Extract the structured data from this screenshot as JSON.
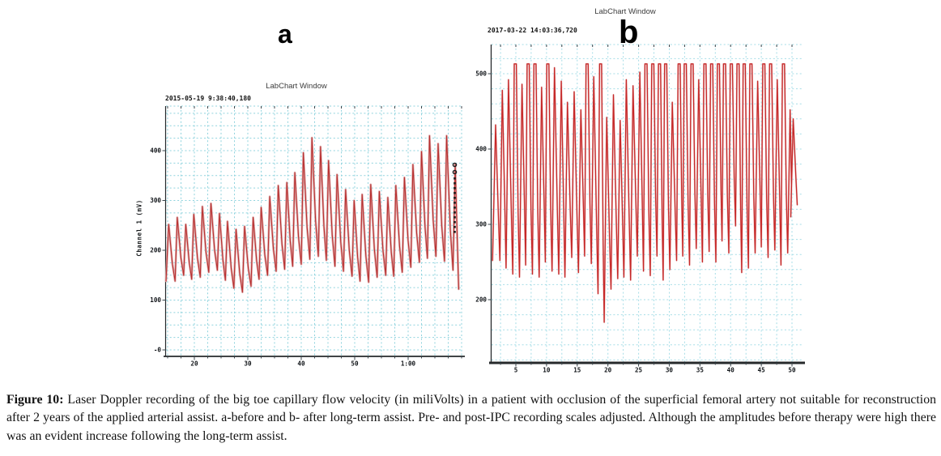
{
  "caption": {
    "label": "Figure 10:",
    "text": " Laser Doppler recording of the big toe capillary flow velocity (in miliVolts) in a patient with occlusion of the superficial femoral artery not suitable for reconstruction after 2 years of the applied arterial assist. a-before and b- after long-term assist. Pre- and post-IPC recording scales adjusted. Although the amplitudes before therapy were high there was an evident increase following the long-term assist."
  },
  "chart_data": [
    {
      "type": "line",
      "panel": "a",
      "annotation_label": "a",
      "title": "LabChart Window",
      "timestamp": "2015-05-19 9:38:40,180",
      "ylabel": "Channel 1 (mV)",
      "xlabel": "",
      "unit": "mV",
      "x_axis": {
        "tick_labels": [
          "20",
          "30",
          "40",
          "50",
          "1:00"
        ],
        "tick_values": [
          20,
          30,
          40,
          50,
          60
        ],
        "range_s": [
          14.7,
          70
        ]
      },
      "y_axis": {
        "tick_labels": [
          "400",
          "300",
          "200",
          "100",
          "-0"
        ],
        "tick_values": [
          400,
          300,
          200,
          100,
          0
        ],
        "range_mv": [
          -13,
          489
        ]
      },
      "grid": {
        "on": true,
        "style": "dashed",
        "t_step": 2.5,
        "v_step": 25,
        "color": "#8fd3de"
      },
      "line_color": "#b83030",
      "halo_color": "#dca6a6",
      "clip_level": null,
      "edge_marker": "dotted-vertical-marker",
      "pulses_t_peak_trough": [
        [
          15.2,
          252,
          138
        ],
        [
          16.8,
          266,
          150
        ],
        [
          18.4,
          252,
          142
        ],
        [
          19.9,
          272,
          146
        ],
        [
          21.5,
          288,
          156
        ],
        [
          23.1,
          294,
          160
        ],
        [
          24.7,
          274,
          140
        ],
        [
          26.2,
          258,
          124
        ],
        [
          27.8,
          242,
          116
        ],
        [
          29.4,
          248,
          128
        ],
        [
          31.0,
          266,
          142
        ],
        [
          32.5,
          286,
          150
        ],
        [
          34.1,
          308,
          158
        ],
        [
          35.7,
          330,
          162
        ],
        [
          37.3,
          336,
          168
        ],
        [
          38.8,
          356,
          172
        ],
        [
          40.4,
          396,
          182
        ],
        [
          42.0,
          426,
          188
        ],
        [
          43.6,
          408,
          180
        ],
        [
          45.1,
          380,
          168
        ],
        [
          46.7,
          352,
          158
        ],
        [
          48.3,
          322,
          148
        ],
        [
          49.9,
          300,
          138
        ],
        [
          51.4,
          312,
          136
        ],
        [
          53.0,
          332,
          146
        ],
        [
          54.6,
          318,
          150
        ],
        [
          56.2,
          306,
          148
        ],
        [
          57.7,
          330,
          156
        ],
        [
          59.3,
          346,
          166
        ],
        [
          60.9,
          372,
          176
        ],
        [
          62.5,
          398,
          184
        ],
        [
          64.0,
          430,
          188
        ],
        [
          65.6,
          414,
          178
        ],
        [
          67.2,
          430,
          160
        ],
        [
          68.8,
          372,
          122
        ]
      ]
    },
    {
      "type": "line",
      "panel": "b",
      "annotation_label": "b",
      "title": "LabChart Window",
      "timestamp": "2017-03-22 14:03:36,720",
      "ylabel": "",
      "xlabel": "",
      "unit": "mV",
      "x_axis": {
        "tick_labels": [
          "5",
          "10",
          "15",
          "20",
          "25",
          "30",
          "35",
          "40",
          "45",
          "50"
        ],
        "tick_values": [
          5,
          10,
          15,
          20,
          25,
          30,
          35,
          40,
          45,
          50
        ],
        "range_s": [
          1,
          51.5
        ]
      },
      "y_axis": {
        "tick_labels": [
          "500",
          "400",
          "300",
          "200"
        ],
        "tick_values": [
          500,
          400,
          300,
          200
        ],
        "range_mv": [
          116,
          539
        ]
      },
      "grid": {
        "on": true,
        "style": "dashed",
        "t_step": 2.5,
        "v_step": 20,
        "color": "#a5dde7"
      },
      "line_color": "#c62828",
      "halo_color": "#e9b8b8",
      "clip_level": 513,
      "edge_marker": null,
      "pulses_t_peak_trough": [
        [
          1.7,
          432,
          252
        ],
        [
          2.8,
          478,
          242
        ],
        [
          3.8,
          492,
          234
        ],
        [
          4.9,
          514,
          230
        ],
        [
          6.0,
          486,
          246
        ],
        [
          7.0,
          514,
          234
        ],
        [
          8.1,
          514,
          230
        ],
        [
          9.2,
          482,
          250
        ],
        [
          10.2,
          514,
          238
        ],
        [
          11.3,
          508,
          234
        ],
        [
          12.4,
          490,
          230
        ],
        [
          13.4,
          462,
          256
        ],
        [
          14.5,
          476,
          236
        ],
        [
          15.6,
          452,
          258
        ],
        [
          16.6,
          514,
          248
        ],
        [
          17.7,
          496,
          208
        ],
        [
          18.8,
          514,
          170
        ],
        [
          19.8,
          442,
          214
        ],
        [
          20.9,
          472,
          228
        ],
        [
          22.0,
          438,
          230
        ],
        [
          23.0,
          492,
          226
        ],
        [
          24.1,
          484,
          258
        ],
        [
          25.2,
          502,
          238
        ],
        [
          26.2,
          514,
          232
        ],
        [
          27.3,
          514,
          258
        ],
        [
          28.4,
          514,
          226
        ],
        [
          29.4,
          514,
          240
        ],
        [
          30.5,
          462,
          252
        ],
        [
          31.6,
          514,
          258
        ],
        [
          32.6,
          514,
          246
        ],
        [
          33.7,
          514,
          268
        ],
        [
          34.8,
          492,
          250
        ],
        [
          35.8,
          514,
          264
        ],
        [
          36.9,
          514,
          250
        ],
        [
          38.0,
          514,
          278
        ],
        [
          39.0,
          514,
          262
        ],
        [
          40.1,
          514,
          298
        ],
        [
          41.2,
          514,
          236
        ],
        [
          42.2,
          514,
          242
        ],
        [
          43.3,
          514,
          262
        ],
        [
          44.4,
          490,
          270
        ],
        [
          45.4,
          514,
          256
        ],
        [
          46.5,
          514,
          266
        ],
        [
          47.6,
          492,
          246
        ],
        [
          48.6,
          514,
          262
        ],
        [
          49.7,
          452,
          310
        ],
        [
          50.2,
          440,
          326
        ]
      ]
    }
  ]
}
